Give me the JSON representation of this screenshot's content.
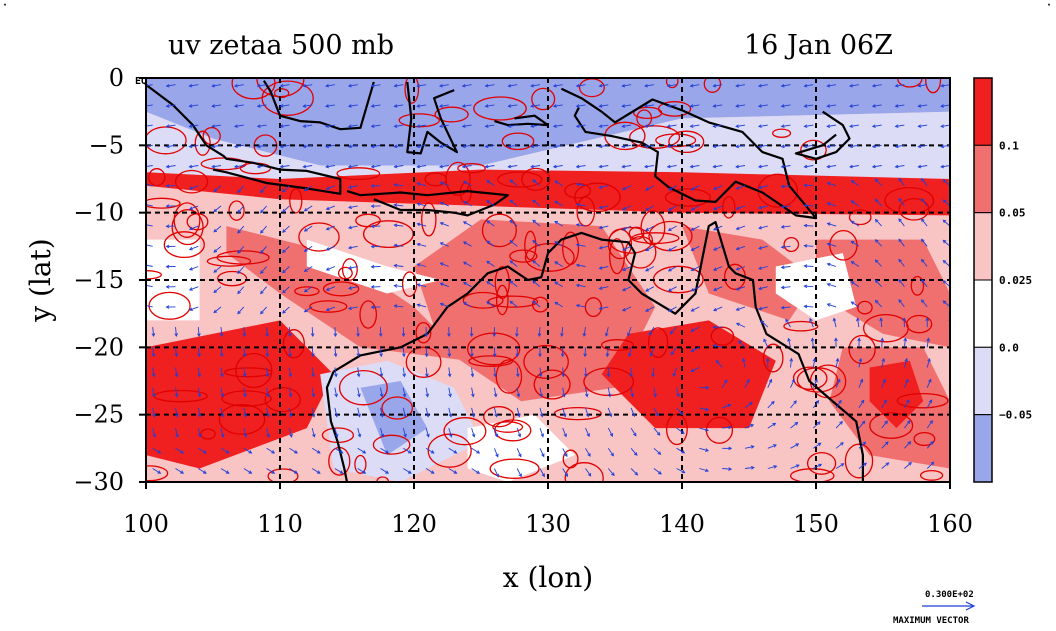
{
  "chart_data": {
    "type": "heatmap",
    "title": "uv zetaa 500 mb",
    "subtitle": "16 Jan 06Z",
    "xlabel": "x (lon)",
    "ylabel": "y (lat)",
    "xlim": [
      100,
      160
    ],
    "ylim": [
      -30,
      0
    ],
    "x_ticks": [
      "100",
      "110",
      "120",
      "130",
      "140",
      "150",
      "160"
    ],
    "y_ticks": [
      "0",
      "−5",
      "−10",
      "−15",
      "−20",
      "−25",
      "−30"
    ],
    "y_tick_values": [
      0,
      -5,
      -10,
      -15,
      -20,
      -25,
      -30
    ],
    "x_tick_values": [
      100,
      110,
      120,
      130,
      140,
      150,
      160
    ],
    "eq_label": "EQ",
    "grid": true,
    "colorbar": {
      "labels": [
        "0.1",
        "0.05",
        "0.025",
        "0.0",
        "−0.05"
      ],
      "levels": [
        0.1,
        0.05,
        0.025,
        0.0,
        -0.05
      ],
      "colors": [
        "#f02020",
        "#f07070",
        "#f8c4c4",
        "#ffffff",
        "#dcdcf6",
        "#9aa6ea"
      ]
    },
    "vector_key": {
      "value_label": "0.300E+02",
      "caption": "MAXIMUM VECTOR",
      "color": "#1f3fd8"
    },
    "field_colors": {
      "strong_positive": "#f02020",
      "positive": "#f07070",
      "weak_positive": "#f8c4c4",
      "near_zero": "#ffffff",
      "weak_negative": "#dcdcf6",
      "negative": "#9aa6ea",
      "contour": "#e00000",
      "vectors": "#1f3fd8",
      "coastline": "#000000"
    }
  }
}
